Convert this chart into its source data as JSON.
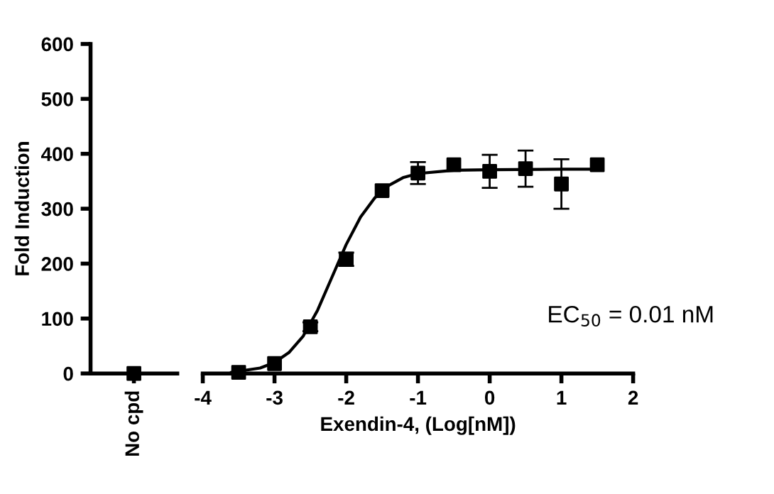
{
  "chart_data": [
    {
      "type": "scatter",
      "categories": [
        "No cpd"
      ],
      "ylabel": "Fold Induction",
      "ylim": [
        0,
        600
      ],
      "yticks": [
        0,
        100,
        200,
        300,
        400,
        500,
        600
      ],
      "marker": "square",
      "grid": false,
      "series": [
        {
          "color": "#000000",
          "values": [
            0
          ]
        }
      ]
    },
    {
      "type": "scatter",
      "xlabel": "Exendin-4, (Log[nM])",
      "xlim": [
        -4,
        2
      ],
      "xticks": [
        -4,
        -3,
        -2,
        -1,
        0,
        1,
        2
      ],
      "ylim": [
        0,
        600
      ],
      "tick_labels": "x",
      "grid": false,
      "annotations": [
        "EC$_{50}$ = 0.01 nM"
      ],
      "series": [
        {
          "type": "scatter",
          "marker": "square",
          "color": "#000000",
          "x": [
            -3.5,
            -3,
            -2.5,
            -2,
            -1.5,
            -1,
            -0.5,
            0,
            0.5,
            1,
            1.5
          ],
          "values": [
            2,
            18,
            85,
            208,
            333,
            365,
            380,
            368,
            373,
            345,
            380
          ],
          "errors": [
            null,
            null,
            8,
            12,
            null,
            20,
            null,
            30,
            33,
            45,
            null
          ]
        },
        {
          "type": "line",
          "marker": "none",
          "color": "#000000",
          "x": [
            -3.6,
            -3.2,
            -3,
            -2.8,
            -2.6,
            -2.4,
            -2.2,
            -2.0,
            -1.8,
            -1.6,
            -1.4,
            -1.2,
            -1,
            -0.5,
            0,
            1,
            1.5
          ],
          "values": [
            2,
            10,
            20,
            38,
            68,
            115,
            175,
            235,
            285,
            320,
            343,
            357,
            364,
            370,
            371,
            372,
            372
          ]
        }
      ]
    }
  ]
}
